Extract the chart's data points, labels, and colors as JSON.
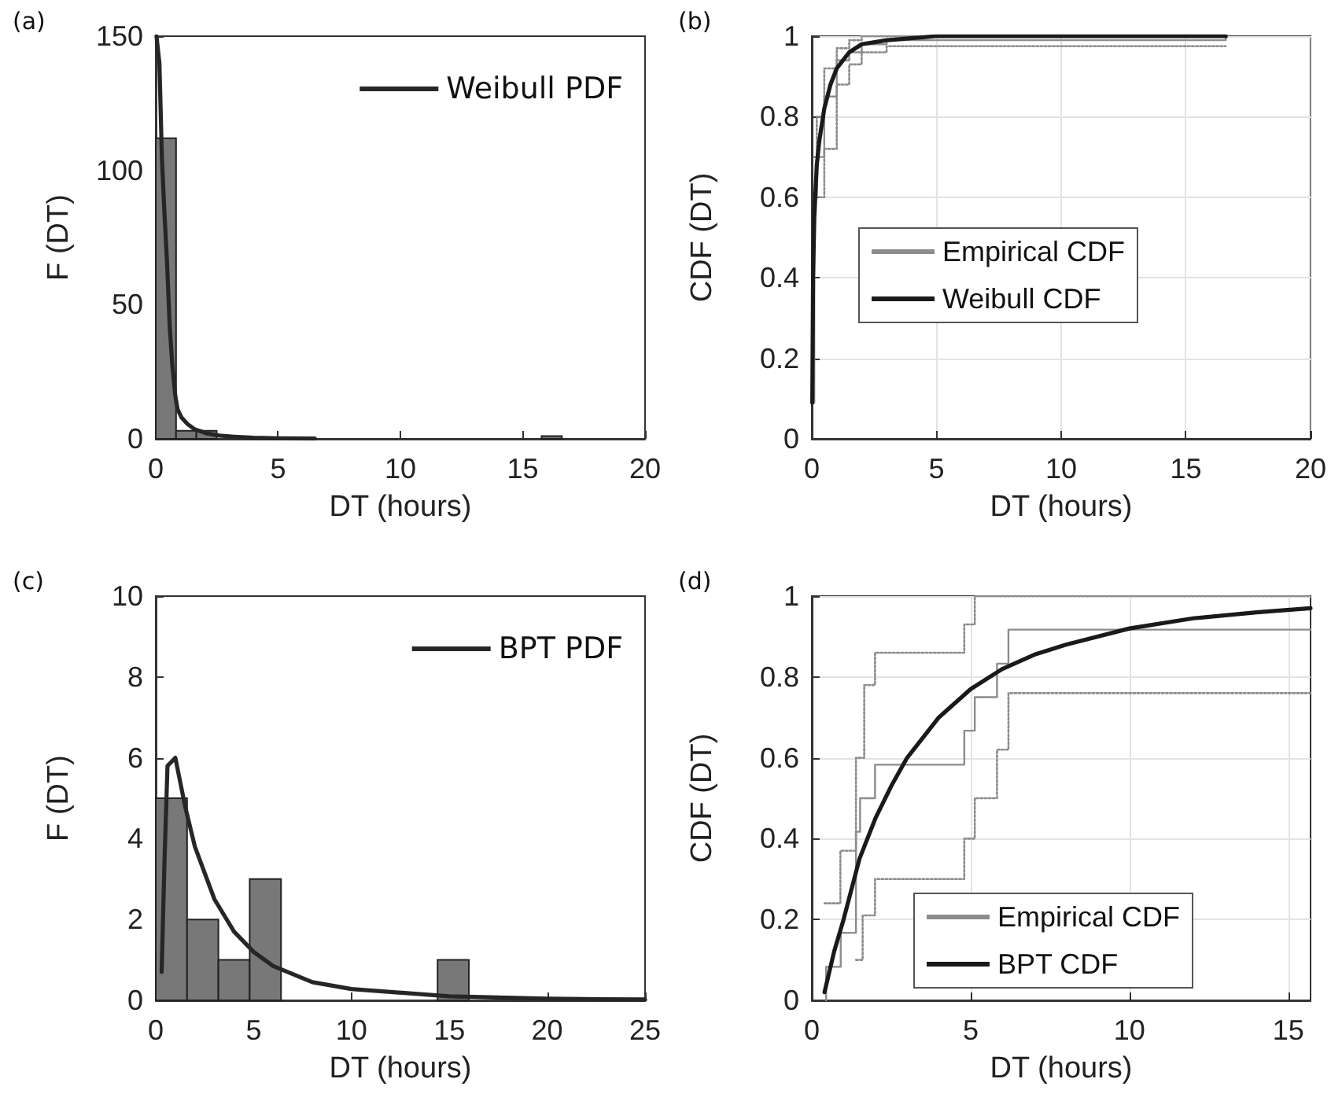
{
  "chart_data": [
    {
      "type": "histogram",
      "annotations": [
        "(a)"
      ],
      "xlabel": "DT (hours)",
      "ylabel": "F (DT)",
      "bins": [
        0,
        0.83,
        1.66,
        2.49,
        3.32,
        4.15,
        4.98,
        5.81,
        6.64,
        7.47,
        8.3,
        9.13,
        9.96,
        10.79,
        11.62,
        12.45,
        13.28,
        14.11,
        14.94,
        15.77,
        16.6
      ],
      "values": [
        112,
        3,
        3,
        0,
        0,
        0,
        0,
        0,
        0,
        0,
        0,
        0,
        0,
        0,
        0,
        0,
        0,
        0,
        0,
        1
      ],
      "color": "#787878",
      "series": [
        {
          "type": "line",
          "name": "Weibull PDF",
          "color": "#262626",
          "x": [
            0.03,
            0.15,
            0.25,
            0.35,
            0.46,
            0.57,
            0.68,
            0.8,
            0.89,
            1.05,
            1.3,
            1.6,
            2.1,
            2.6,
            3.2,
            4,
            5,
            6.5
          ],
          "values": [
            150,
            140,
            105,
            85,
            66,
            42,
            27,
            16,
            11,
            8,
            5.5,
            3.5,
            2,
            1.2,
            0.8,
            0.4,
            0.2,
            0.1
          ]
        }
      ],
      "xlim": [
        0,
        20
      ],
      "ylim": [
        0,
        150
      ],
      "xticks": [
        0,
        5,
        10,
        15,
        20
      ],
      "yticks": [
        0,
        50,
        100,
        150
      ],
      "legend": "top right",
      "grid": false
    },
    {
      "type": "line",
      "annotations": [
        "(b)"
      ],
      "xlabel": "DT (hours)",
      "ylabel": "CDF (DT)",
      "series": [
        {
          "type": "step",
          "name": "Empirical CDF",
          "color": "#8c8c8c",
          "x": [
            0.02,
            0.1,
            0.2,
            0.5,
            1,
            1.5,
            2,
            3,
            16.6
          ],
          "values": [
            0.09,
            0.6,
            0.7,
            0.85,
            0.94,
            0.96,
            0.98,
            0.99,
            1
          ]
        },
        {
          "type": "line",
          "name": "Weibull CDF",
          "color": "#1a1a1a",
          "x": [
            0.02,
            0.05,
            0.1,
            0.2,
            0.3,
            0.5,
            0.75,
            1,
            1.5,
            2,
            3,
            5,
            10,
            16.6
          ],
          "values": [
            0.09,
            0.4,
            0.55,
            0.68,
            0.74,
            0.82,
            0.88,
            0.92,
            0.96,
            0.98,
            0.99,
            1,
            1,
            1
          ]
        },
        {
          "type": "step",
          "color": "#8c8c8c",
          "line_style": "dotted",
          "x": [
            0.1,
            0.2,
            0.5,
            1,
            1.5,
            2,
            16.6
          ],
          "values": [
            0.7,
            0.8,
            0.92,
            0.97,
            0.99,
            1,
            1
          ]
        },
        {
          "type": "step",
          "color": "#8c8c8c",
          "line_style": "dotted",
          "x": [
            0.3,
            0.5,
            1,
            1.5,
            2,
            3,
            16.6
          ],
          "values": [
            0.6,
            0.72,
            0.88,
            0.93,
            0.96,
            0.975,
            0.975
          ]
        }
      ],
      "xlim": [
        0,
        20
      ],
      "ylim": [
        0,
        1
      ],
      "xticks": [
        0,
        5,
        10,
        15,
        20
      ],
      "yticks": [
        0,
        0.2,
        0.4,
        0.6,
        0.8,
        1
      ],
      "legend": "center",
      "grid": true
    },
    {
      "type": "histogram",
      "annotations": [
        "(c)"
      ],
      "xlabel": "DT (hours)",
      "ylabel": "F (DT)",
      "bins": [
        0,
        1.6,
        3.2,
        4.8,
        6.4,
        8,
        9.6,
        11.2,
        12.8,
        14.4,
        16
      ],
      "values": [
        5,
        2,
        1,
        3,
        0,
        0,
        0,
        0,
        0,
        1
      ],
      "color": "#787878",
      "series": [
        {
          "type": "line",
          "name": "BPT PDF",
          "color": "#262626",
          "x": [
            0.3,
            0.45,
            0.6,
            0.8,
            1,
            1.5,
            2,
            3,
            4,
            5,
            6,
            8,
            10,
            15,
            20,
            25
          ],
          "values": [
            0.7,
            3.5,
            5.8,
            5.9,
            6,
            4.8,
            3.8,
            2.5,
            1.7,
            1.2,
            0.85,
            0.45,
            0.28,
            0.1,
            0.04,
            0.02
          ]
        }
      ],
      "xlim": [
        0,
        25
      ],
      "ylim": [
        0,
        10
      ],
      "xticks": [
        0,
        5,
        10,
        15,
        20,
        25
      ],
      "yticks": [
        0,
        2,
        4,
        6,
        8,
        10
      ],
      "legend": "top right",
      "grid": false
    },
    {
      "type": "line",
      "annotations": [
        "(d)"
      ],
      "xlabel": "DT (hours)",
      "ylabel": "CDF (DT)",
      "series": [
        {
          "type": "step",
          "name": "Empirical CDF",
          "color": "#8c8c8c",
          "x": [
            0.45,
            0.45,
            0.91,
            1.39,
            1.52,
            1.99,
            4.8,
            5.13,
            5.83,
            6.19,
            15.7
          ],
          "values": [
            0,
            0.083,
            0.167,
            0.417,
            0.5,
            0.583,
            0.667,
            0.75,
            0.833,
            0.917,
            0.917
          ]
        },
        {
          "type": "line",
          "name": "BPT CDF",
          "color": "#1a1a1a",
          "x": [
            0.4,
            0.7,
            1,
            1.5,
            2,
            2.5,
            3,
            4,
            5,
            6,
            7,
            8,
            10,
            12,
            14,
            15.7
          ],
          "values": [
            0.02,
            0.12,
            0.2,
            0.35,
            0.45,
            0.53,
            0.6,
            0.7,
            0.77,
            0.82,
            0.855,
            0.88,
            0.92,
            0.945,
            0.96,
            0.97
          ]
        },
        {
          "type": "step",
          "color": "#8c8c8c",
          "line_style": "dotted",
          "x": [
            0.4,
            0.9,
            1.39,
            1.65,
            1.99,
            4.8,
            5.13,
            15.7
          ],
          "values": [
            0.24,
            0.37,
            0.6,
            0.78,
            0.86,
            0.93,
            1,
            1
          ]
        },
        {
          "type": "step",
          "color": "#8c8c8c",
          "line_style": "dotted",
          "x": [
            1.39,
            1.6,
            1.99,
            4.8,
            5.13,
            5.83,
            6.19,
            15.7
          ],
          "values": [
            0.1,
            0.21,
            0.3,
            0.4,
            0.5,
            0.62,
            0.76,
            0.76
          ]
        }
      ],
      "xlim": [
        0,
        15.7
      ],
      "ylim": [
        0,
        1
      ],
      "xticks": [
        0,
        5,
        10,
        15
      ],
      "yticks": [
        0,
        0.2,
        0.4,
        0.6,
        0.8,
        1
      ],
      "legend": "bottom right",
      "grid": true
    }
  ]
}
